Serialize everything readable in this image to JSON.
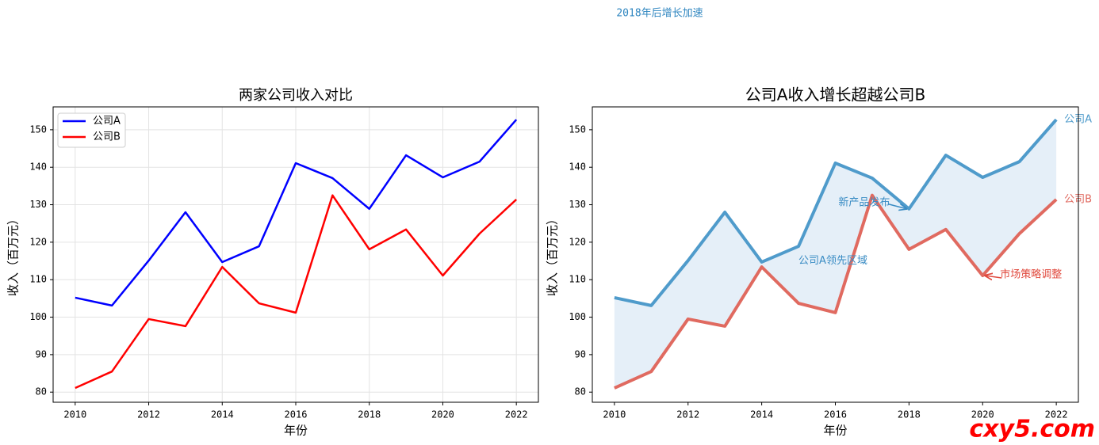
{
  "figure_note": "2018年后增长加速",
  "watermark": "cxy5.com",
  "chart_data": [
    {
      "type": "line",
      "title": "两家公司收入对比",
      "x_label": "年份",
      "y_label": "收入（百万元）",
      "x": [
        2010,
        2011,
        2012,
        2013,
        2014,
        2015,
        2016,
        2017,
        2018,
        2019,
        2020,
        2021,
        2022
      ],
      "series": [
        {
          "name": "公司A",
          "color": "#0000ff",
          "values": [
            105.2,
            103.1,
            115.1,
            128.0,
            114.7,
            118.9,
            141.1,
            137.1,
            128.9,
            143.2,
            137.3,
            141.5,
            152.7
          ]
        },
        {
          "name": "公司B",
          "color": "#ff0000",
          "values": [
            81.1,
            85.5,
            99.5,
            97.6,
            113.4,
            103.7,
            101.2,
            132.5,
            118.1,
            123.4,
            111.1,
            122.3,
            131.4
          ]
        }
      ],
      "xlim": [
        2009.4,
        2022.6
      ],
      "xticks": [
        2010,
        2012,
        2014,
        2016,
        2018,
        2020,
        2022
      ],
      "ylim": [
        77.3,
        156.1
      ],
      "yticks": [
        80,
        90,
        100,
        110,
        120,
        130,
        140,
        150
      ],
      "grid": true,
      "legend": "upper-left"
    },
    {
      "type": "line",
      "title": "公司A收入增长超越公司B",
      "x_label": "年份",
      "y_label": "收入（百万元）",
      "x": [
        2010,
        2011,
        2012,
        2013,
        2014,
        2015,
        2016,
        2017,
        2018,
        2019,
        2020,
        2021,
        2022
      ],
      "series": [
        {
          "name": "公司A",
          "color": "#4f9bcb",
          "values": [
            105.2,
            103.1,
            115.1,
            128.0,
            114.7,
            118.9,
            141.1,
            137.1,
            128.9,
            143.2,
            137.3,
            141.5,
            152.7
          ]
        },
        {
          "name": "公司B",
          "color": "#e06a60",
          "values": [
            81.1,
            85.5,
            99.5,
            97.6,
            113.4,
            103.7,
            101.2,
            132.5,
            118.1,
            123.4,
            111.1,
            122.3,
            131.4
          ]
        }
      ],
      "xlim": [
        2009.4,
        2022.6
      ],
      "xticks": [
        2010,
        2012,
        2014,
        2016,
        2018,
        2020,
        2022
      ],
      "ylim": [
        77.3,
        156.1
      ],
      "yticks": [
        80,
        90,
        100,
        110,
        120,
        130,
        140,
        150
      ],
      "grid": false,
      "fill_between": true,
      "fill_color": "#dce9f6",
      "end_labels": true,
      "annotations": [
        {
          "text": "新产品发布",
          "x": 2018,
          "y": 128.9,
          "color": "#3a8cc4",
          "arrow": true
        },
        {
          "text": "公司A领先区域",
          "x": 2015,
          "y": 115,
          "color": "#3a8cc4",
          "arrow": false
        },
        {
          "text": "市场策略调整",
          "x": 2020,
          "y": 111.1,
          "color": "#e0483c",
          "arrow": true
        }
      ]
    }
  ]
}
